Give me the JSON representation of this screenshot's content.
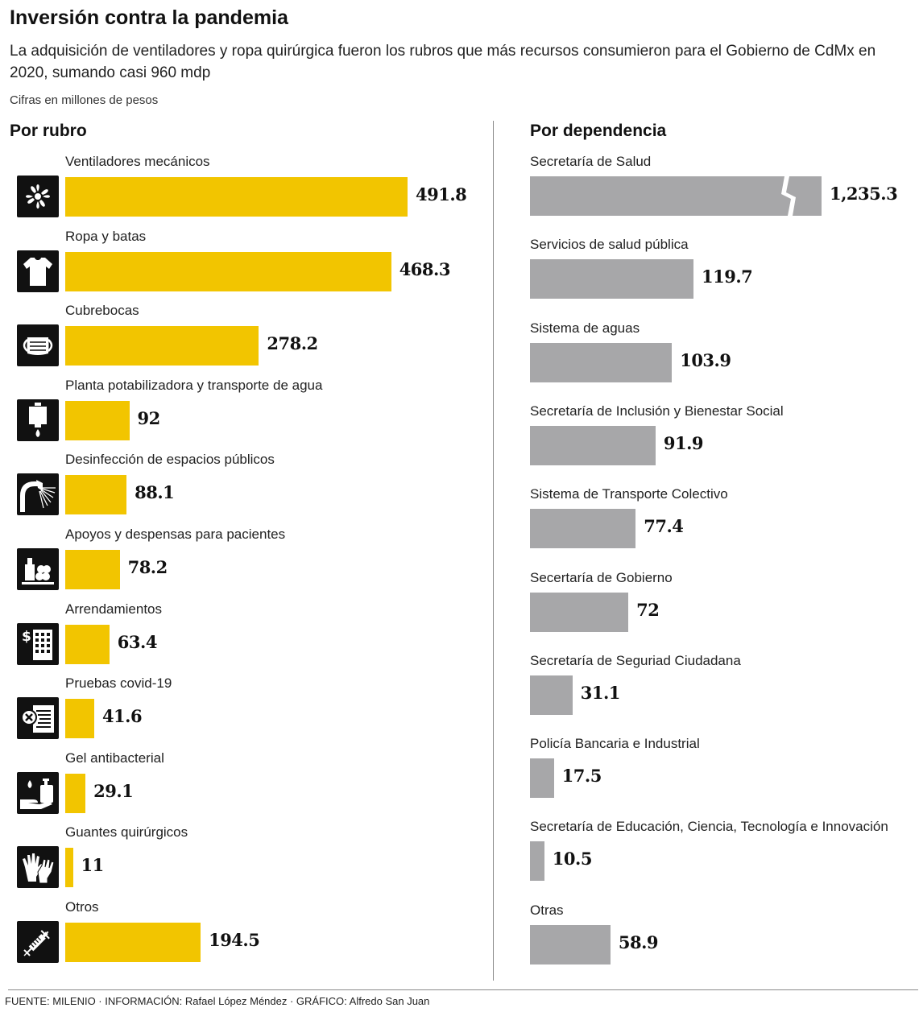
{
  "header": {
    "title": "Inversión contra la pandemia",
    "subtitle": "La adquisición de ventiladores y ropa quirúrgica fueron los rubros que más recursos consumieron para el Gobierno de CdMx en 2020, sumando casi 960 mdp",
    "units": "Cifras en millones de pesos"
  },
  "left_section_title": "Por rubro",
  "right_section_title": "Por dependencia",
  "footer": {
    "source": "FUENTE: MILENIO · INFORMACIÓN: Rafael López Méndez · GRÁFICO: Alfredo San Juan"
  },
  "colors": {
    "rubro_bar": "#f2c500",
    "dependencia_bar": "#a7a7a9",
    "icon_background": "#111111"
  },
  "chart_data": [
    {
      "type": "bar",
      "orientation": "horizontal",
      "title": "Por rubro",
      "unit": "millones de pesos",
      "categories": [
        "Ventiladores mecánicos",
        "Ropa y batas",
        "Cubrebocas",
        "Planta potabilizadora y transporte de agua",
        "Desinfección de espacios públicos",
        "Apoyos y despensas para pacientes",
        "Arrendamientos",
        "Pruebas covid-19",
        "Gel antibacterial",
        "Guantes quirúrgicos",
        "Otros"
      ],
      "values": [
        491.8,
        468.3,
        278.2,
        92,
        88.1,
        78.2,
        63.4,
        41.6,
        29.1,
        11,
        194.5
      ],
      "value_labels": [
        "491.8",
        "468.3",
        "278.2",
        "92",
        "88.1",
        "78.2",
        "63.4",
        "41.6",
        "29.1",
        "11",
        "194.5"
      ],
      "icons": [
        "fan-icon",
        "shirt-icon",
        "face-mask-icon",
        "water-tank-icon",
        "spray-hose-icon",
        "supplies-icon",
        "building-rent-icon",
        "test-document-icon",
        "hand-sanitizer-icon",
        "gloves-icon",
        "syringe-icon"
      ]
    },
    {
      "type": "bar",
      "orientation": "horizontal",
      "title": "Por dependencia",
      "unit": "millones de pesos",
      "categories": [
        "Secretaría de Salud",
        "Servicios de salud pública",
        "Sistema de aguas",
        "Secretaría de Inclusión y Bienestar Social",
        "Sistema de Transporte Colectivo",
        "Secertaría de Gobierno",
        "Secretaría de Seguriad Ciudadana",
        "Policía Bancaria e Industrial",
        "Secretaría de Educación, Ciencia, Tecnología e Innovación",
        "Otras"
      ],
      "values": [
        1235.3,
        119.7,
        103.9,
        91.9,
        77.4,
        72,
        31.1,
        17.5,
        10.5,
        58.9
      ],
      "value_labels": [
        "1,235.3",
        "119.7",
        "103.9",
        "91.9",
        "77.4",
        "72",
        "31.1",
        "17.5",
        "10.5",
        "58.9"
      ],
      "broken_axis_bar": "Secretaría de Salud"
    }
  ]
}
